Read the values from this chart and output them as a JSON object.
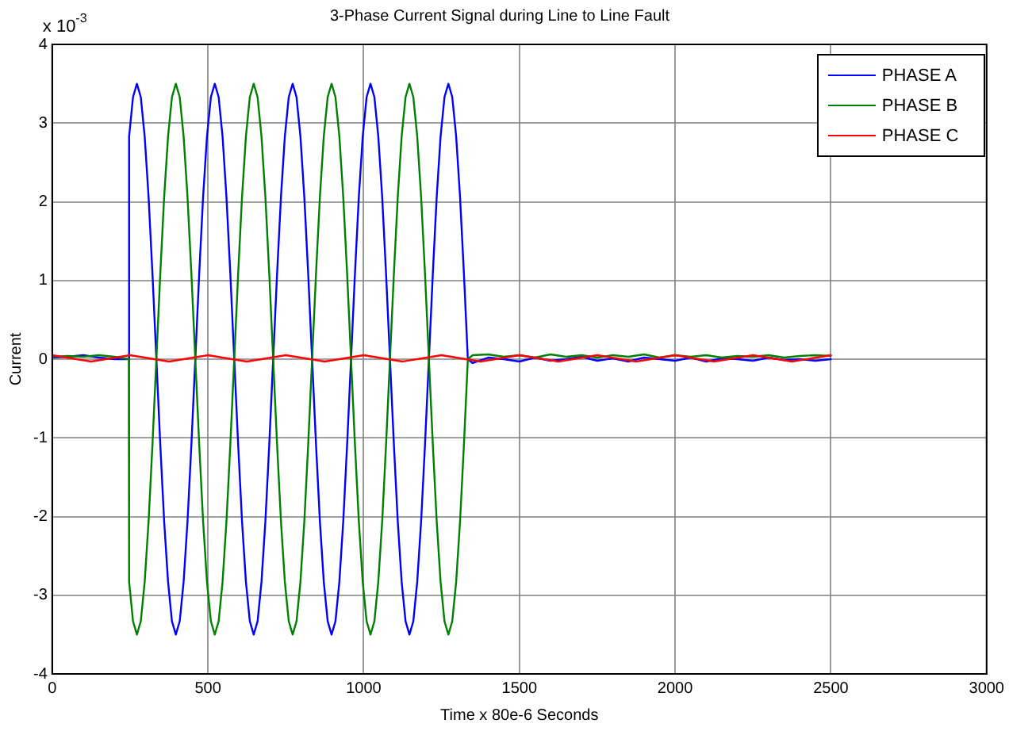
{
  "chart_data": {
    "type": "line",
    "title": "3-Phase Current Signal during Line to Line Fault",
    "xlabel": "Time x 80e-6 Seconds",
    "ylabel": "Current",
    "annotations": [
      "x 10$^{-3}$"
    ],
    "xlim": [
      0,
      3000
    ],
    "xticks": [
      0,
      500,
      1000,
      1500,
      2000,
      2500,
      3000
    ],
    "ylim": [
      -4,
      4
    ],
    "yticks": [
      -4,
      -3,
      -2,
      -1,
      0,
      1,
      2,
      3,
      4
    ],
    "grid": true,
    "legend": "top right",
    "marker": "none",
    "line_style": "solid",
    "x": [
      0,
      50,
      100,
      150,
      200,
      246,
      247,
      259.5,
      272,
      284.5,
      297,
      309.5,
      322,
      334.5,
      347,
      359.5,
      372,
      384.5,
      397,
      409.5,
      422,
      434.5,
      447,
      459.5,
      472,
      484.5,
      497,
      509.5,
      522,
      534.5,
      547,
      559.5,
      572,
      584.5,
      597,
      609.5,
      622,
      634.5,
      647,
      659.5,
      672,
      684.5,
      697,
      709.5,
      722,
      734.5,
      747,
      759.5,
      772,
      784.5,
      797,
      809.5,
      822,
      834.5,
      847,
      859.5,
      872,
      884.5,
      897,
      909.5,
      922,
      934.5,
      947,
      959.5,
      972,
      984.5,
      997,
      1009.5,
      1022,
      1034.5,
      1047,
      1059.5,
      1072,
      1084.5,
      1097,
      1109.5,
      1122,
      1134.5,
      1147,
      1159.5,
      1172,
      1184.5,
      1197,
      1209.5,
      1222,
      1234.5,
      1247,
      1259.5,
      1272,
      1284.5,
      1297,
      1309.5,
      1322,
      1334.5,
      1350,
      1400,
      1450,
      1500,
      1550,
      1600,
      1650,
      1700,
      1750,
      1800,
      1850,
      1900,
      1950,
      2000,
      2050,
      2100,
      2150,
      2200,
      2250,
      2300,
      2350,
      2400,
      2450,
      2500
    ],
    "series": [
      {
        "name": "PHASE A",
        "color": "#0000ff",
        "values": [
          0.02,
          0.03,
          0.05,
          0.02,
          0,
          0,
          2.83,
          3.33,
          3.5,
          3.33,
          2.83,
          2.06,
          1.08,
          0,
          -1.08,
          -2.06,
          -2.83,
          -3.33,
          -3.5,
          -3.33,
          -2.83,
          -2.06,
          -1.08,
          0,
          1.08,
          2.06,
          2.83,
          3.33,
          3.5,
          3.33,
          2.83,
          2.06,
          1.08,
          0,
          -1.08,
          -2.06,
          -2.83,
          -3.33,
          -3.5,
          -3.33,
          -2.83,
          -2.06,
          -1.08,
          0,
          1.08,
          2.06,
          2.83,
          3.33,
          3.5,
          3.33,
          2.83,
          2.06,
          1.08,
          0,
          -1.08,
          -2.06,
          -2.83,
          -3.33,
          -3.5,
          -3.33,
          -2.83,
          -2.06,
          -1.08,
          0,
          1.08,
          2.06,
          2.83,
          3.33,
          3.5,
          3.33,
          2.83,
          2.06,
          1.08,
          0,
          -1.08,
          -2.06,
          -2.83,
          -3.33,
          -3.5,
          -3.33,
          -2.83,
          -2.06,
          -1.08,
          0,
          1.08,
          2.06,
          2.83,
          3.33,
          3.5,
          3.33,
          2.83,
          2.06,
          1.08,
          0,
          -0.05,
          0.02,
          0,
          -0.03,
          0.02,
          -0.02,
          0,
          0.03,
          -0.02,
          0.01,
          -0.03,
          0.02,
          0,
          -0.02,
          0.02,
          -0.03,
          0.01,
          0,
          -0.02,
          0.02,
          -0.01,
          0,
          -0.02,
          0
        ]
      },
      {
        "name": "PHASE B",
        "color": "#008000",
        "values": [
          0.03,
          0.04,
          0.03,
          0.05,
          0.03,
          0,
          -2.83,
          -3.33,
          -3.5,
          -3.33,
          -2.83,
          -2.06,
          -1.08,
          0,
          1.08,
          2.06,
          2.83,
          3.33,
          3.5,
          3.33,
          2.83,
          2.06,
          1.08,
          0,
          -1.08,
          -2.06,
          -2.83,
          -3.33,
          -3.5,
          -3.33,
          -2.83,
          -2.06,
          -1.08,
          0,
          1.08,
          2.06,
          2.83,
          3.33,
          3.5,
          3.33,
          2.83,
          2.06,
          1.08,
          0,
          -1.08,
          -2.06,
          -2.83,
          -3.33,
          -3.5,
          -3.33,
          -2.83,
          -2.06,
          -1.08,
          0,
          1.08,
          2.06,
          2.83,
          3.33,
          3.5,
          3.33,
          2.83,
          2.06,
          1.08,
          0,
          -1.08,
          -2.06,
          -2.83,
          -3.33,
          -3.5,
          -3.33,
          -2.83,
          -2.06,
          -1.08,
          0,
          1.08,
          2.06,
          2.83,
          3.33,
          3.5,
          3.33,
          2.83,
          2.06,
          1.08,
          0,
          -1.08,
          -2.06,
          -2.83,
          -3.33,
          -3.5,
          -3.33,
          -2.83,
          -2.06,
          -1.08,
          0,
          0.05,
          0.06,
          0.03,
          0.05,
          0.02,
          0.06,
          0.03,
          0.05,
          0.02,
          0.05,
          0.03,
          0.06,
          0.02,
          0.05,
          0.03,
          0.05,
          0.02,
          0.04,
          0.03,
          0.05,
          0.02,
          0.04,
          0.05,
          0.04
        ]
      },
      {
        "name": "PHASE C",
        "color": "#ff0000",
        "x": [
          0,
          62.5,
          125,
          187.5,
          250,
          312.5,
          375,
          437.5,
          500,
          562.5,
          625,
          687.5,
          750,
          812.5,
          875,
          937.5,
          1000,
          1062.5,
          1125,
          1187.5,
          1250,
          1312.5,
          1375,
          1437.5,
          1500,
          1562.5,
          1625,
          1687.5,
          1750,
          1812.5,
          1875,
          1937.5,
          2000,
          2062.5,
          2125,
          2187.5,
          2250,
          2312.5,
          2375,
          2437.5,
          2500
        ],
        "values": [
          0.05,
          0.01,
          -0.03,
          0.01,
          0.05,
          0.01,
          -0.03,
          0.01,
          0.05,
          0.01,
          -0.03,
          0.01,
          0.05,
          0.01,
          -0.03,
          0.01,
          0.05,
          0.01,
          -0.03,
          0.01,
          0.05,
          0.01,
          -0.03,
          0.01,
          0.05,
          0.01,
          -0.03,
          0.01,
          0.05,
          0.01,
          -0.03,
          0.01,
          0.05,
          0.01,
          -0.03,
          0.01,
          0.05,
          0.01,
          -0.03,
          0.01,
          0.05
        ]
      }
    ]
  }
}
